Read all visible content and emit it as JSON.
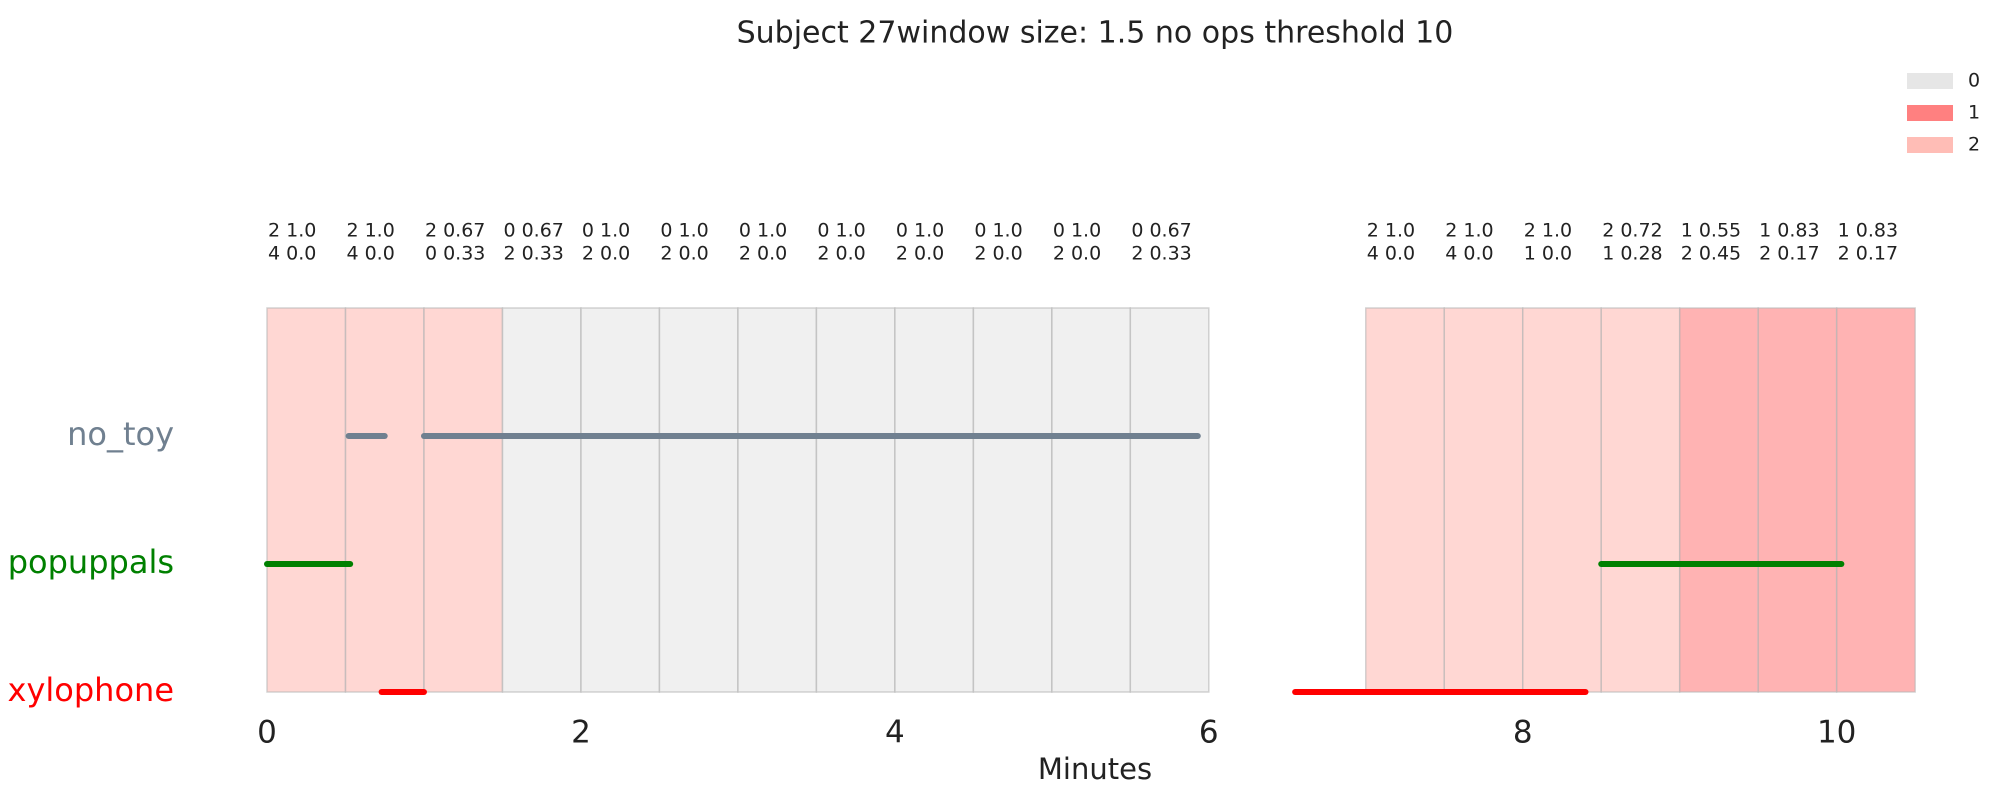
{
  "chart_data": {
    "type": "timeline",
    "title": "Subject 27window size: 1.5 no ops threshold 10",
    "x_label": "Minutes",
    "xlim": [
      0,
      10.55
    ],
    "xticks": [
      0,
      2,
      4,
      6,
      8,
      10
    ],
    "legend": {
      "position": "upper right",
      "entries": [
        {
          "name": "0",
          "color": "#e6e6e6"
        },
        {
          "name": "1",
          "color": "#ff8080"
        },
        {
          "name": "2",
          "color": "#ffbdb6"
        }
      ]
    },
    "windows": [
      {
        "start": 0,
        "end": 0.5,
        "state": 2,
        "label": [
          "2 1.0",
          "4 0.0"
        ]
      },
      {
        "start": 0.5,
        "end": 1,
        "state": 2,
        "label": [
          "2 1.0",
          "4 0.0"
        ]
      },
      {
        "start": 1,
        "end": 1.5,
        "state": 2,
        "label": [
          "2 0.67",
          "0 0.33"
        ]
      },
      {
        "start": 1.5,
        "end": 2,
        "state": 0,
        "label": [
          "0 0.67",
          "2 0.33"
        ]
      },
      {
        "start": 2,
        "end": 2.5,
        "state": 0,
        "label": [
          "0 1.0",
          "2 0.0"
        ]
      },
      {
        "start": 2.5,
        "end": 3,
        "state": 0,
        "label": [
          "0 1.0",
          "2 0.0"
        ]
      },
      {
        "start": 3,
        "end": 3.5,
        "state": 0,
        "label": [
          "0 1.0",
          "2 0.0"
        ]
      },
      {
        "start": 3.5,
        "end": 4,
        "state": 0,
        "label": [
          "0 1.0",
          "2 0.0"
        ]
      },
      {
        "start": 4,
        "end": 4.5,
        "state": 0,
        "label": [
          "0 1.0",
          "2 0.0"
        ]
      },
      {
        "start": 4.5,
        "end": 5,
        "state": 0,
        "label": [
          "0 1.0",
          "2 0.0"
        ]
      },
      {
        "start": 5,
        "end": 5.5,
        "state": 0,
        "label": [
          "0 1.0",
          "2 0.0"
        ]
      },
      {
        "start": 5.5,
        "end": 6,
        "state": 0,
        "label": [
          "0 0.67",
          "2 0.33"
        ]
      },
      {
        "start": 7,
        "end": 7.5,
        "state": 2,
        "label": [
          "2 1.0",
          "4 0.0"
        ]
      },
      {
        "start": 7.5,
        "end": 8,
        "state": 2,
        "label": [
          "2 1.0",
          "4 0.0"
        ]
      },
      {
        "start": 8,
        "end": 8.5,
        "state": 2,
        "label": [
          "2 1.0",
          "1 0.0"
        ]
      },
      {
        "start": 8.5,
        "end": 9,
        "state": 2,
        "label": [
          "2 0.72",
          "1 0.28"
        ]
      },
      {
        "start": 9,
        "end": 9.5,
        "state": 1,
        "label": [
          "1 0.55",
          "2 0.45"
        ]
      },
      {
        "start": 9.5,
        "end": 10,
        "state": 1,
        "label": [
          "1 0.83",
          "2 0.17"
        ]
      },
      {
        "start": 10,
        "end": 10.5,
        "state": 1,
        "label": [
          "1 0.83",
          "2 0.17"
        ]
      }
    ],
    "series": [
      {
        "name": "no_toy",
        "color": "#708090",
        "segments": [
          [
            0.52,
            0.75
          ],
          [
            1.0,
            5.93
          ]
        ]
      },
      {
        "name": "popuppals",
        "color": "#008000",
        "segments": [
          [
            0,
            0.53
          ],
          [
            8.5,
            10.03
          ]
        ]
      },
      {
        "name": "xylophone",
        "color": "#ff0000",
        "segments": [
          [
            0.73,
            1.0
          ],
          [
            6.55,
            8.4
          ]
        ]
      }
    ]
  }
}
